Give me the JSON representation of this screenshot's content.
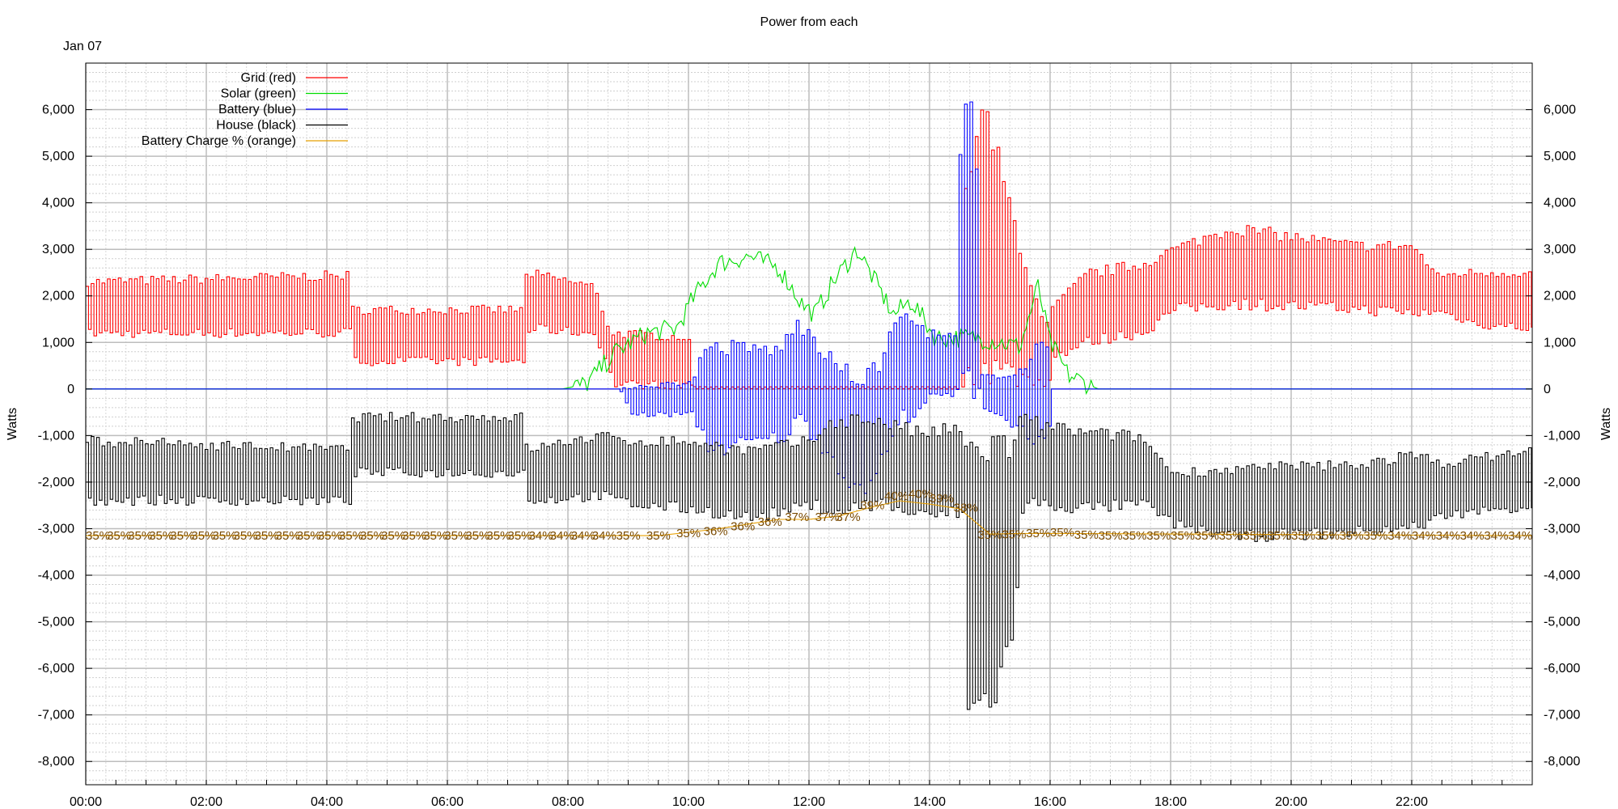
{
  "chart_data": {
    "type": "line",
    "title": "Power from each",
    "date_label": "Jan 07",
    "ylabel_left": "Watts",
    "ylabel_right": "Watts",
    "xlim": [
      0,
      24
    ],
    "ylim": [
      -8500,
      7000
    ],
    "grid": true,
    "legend_position": "top-left",
    "x_ticks": [
      {
        "v": 0,
        "label": "00:00"
      },
      {
        "v": 2,
        "label": "02:00"
      },
      {
        "v": 4,
        "label": "04:00"
      },
      {
        "v": 6,
        "label": "06:00"
      },
      {
        "v": 8,
        "label": "08:00"
      },
      {
        "v": 10,
        "label": "10:00"
      },
      {
        "v": 12,
        "label": "12:00"
      },
      {
        "v": 14,
        "label": "14:00"
      },
      {
        "v": 16,
        "label": "16:00"
      },
      {
        "v": 18,
        "label": "18:00"
      },
      {
        "v": 20,
        "label": "20:00"
      },
      {
        "v": 22,
        "label": "22:00"
      }
    ],
    "y_ticks": [
      {
        "v": 6000,
        "label": "6,000"
      },
      {
        "v": 5000,
        "label": "5,000"
      },
      {
        "v": 4000,
        "label": "4,000"
      },
      {
        "v": 3000,
        "label": "3,000"
      },
      {
        "v": 2000,
        "label": "2,000"
      },
      {
        "v": 1000,
        "label": "1,000"
      },
      {
        "v": 0,
        "label": "0"
      },
      {
        "v": -1000,
        "label": "-1,000"
      },
      {
        "v": -2000,
        "label": "-2,000"
      },
      {
        "v": -3000,
        "label": "-3,000"
      },
      {
        "v": -4000,
        "label": "-4,000"
      },
      {
        "v": -5000,
        "label": "-5,000"
      },
      {
        "v": -6000,
        "label": "-6,000"
      },
      {
        "v": -7000,
        "label": "-7,000"
      },
      {
        "v": -8000,
        "label": "-8,000"
      }
    ],
    "series": [
      {
        "name": "Grid (red)",
        "color": "#ff0000",
        "envelope": [
          [
            0,
            1100,
            2400
          ],
          [
            4.35,
            1100,
            2550
          ],
          [
            4.4,
            500,
            1800
          ],
          [
            7.2,
            500,
            1800
          ],
          [
            7.3,
            1200,
            2600
          ],
          [
            8.4,
            1100,
            2300
          ],
          [
            8.7,
            0,
            1300
          ],
          [
            10.0,
            0,
            1200
          ],
          [
            10.05,
            0,
            50
          ],
          [
            14.45,
            0,
            50
          ],
          [
            14.6,
            0,
            5000
          ],
          [
            14.9,
            0,
            6400
          ],
          [
            15.2,
            0,
            4800
          ],
          [
            15.9,
            0,
            1300
          ],
          [
            16.0,
            600,
            1800
          ],
          [
            16.6,
            900,
            2600
          ],
          [
            17.5,
            1100,
            2800
          ],
          [
            18.0,
            1600,
            3100
          ],
          [
            19.0,
            1700,
            3600
          ],
          [
            21.0,
            1600,
            3200
          ],
          [
            22.0,
            1500,
            3200
          ],
          [
            22.4,
            1600,
            2500
          ],
          [
            23.0,
            1300,
            2600
          ],
          [
            24,
            1200,
            2600
          ]
        ]
      },
      {
        "name": "Solar (green)",
        "color": "#00dd00",
        "points": [
          [
            0,
            0
          ],
          [
            7.9,
            0
          ],
          [
            8.3,
            100
          ],
          [
            8.8,
            800
          ],
          [
            9.3,
            1200
          ],
          [
            9.8,
            1300
          ],
          [
            10.1,
            2000
          ],
          [
            10.5,
            2700
          ],
          [
            11.0,
            2850
          ],
          [
            11.5,
            2600
          ],
          [
            11.9,
            1800
          ],
          [
            12.1,
            1600
          ],
          [
            12.4,
            2300
          ],
          [
            12.8,
            3000
          ],
          [
            13.1,
            2300
          ],
          [
            13.4,
            1600
          ],
          [
            13.7,
            1900
          ],
          [
            14.1,
            1100
          ],
          [
            14.8,
            1100
          ],
          [
            15.2,
            1000
          ],
          [
            15.5,
            900
          ],
          [
            15.8,
            2200
          ],
          [
            16.0,
            1000
          ],
          [
            16.3,
            300
          ],
          [
            16.8,
            0
          ],
          [
            24,
            0
          ]
        ],
        "jitter": 220
      },
      {
        "name": "Battery (blue)",
        "color": "#0000ff",
        "envelope": [
          [
            0,
            0,
            0
          ],
          [
            8.8,
            0,
            0
          ],
          [
            9.0,
            -600,
            100
          ],
          [
            10.0,
            -600,
            200
          ],
          [
            10.3,
            -1500,
            1100
          ],
          [
            11.5,
            -1200,
            1000
          ],
          [
            11.8,
            -800,
            1600
          ],
          [
            12.4,
            -1800,
            700
          ],
          [
            12.8,
            -2500,
            400
          ],
          [
            13.1,
            -1800,
            600
          ],
          [
            13.5,
            -800,
            1800
          ],
          [
            14.0,
            -300,
            1300
          ],
          [
            14.45,
            -200,
            1200
          ],
          [
            14.5,
            -300,
            6300
          ],
          [
            14.75,
            -300,
            6300
          ],
          [
            14.8,
            -400,
            300
          ],
          [
            15.5,
            -1000,
            500
          ],
          [
            15.9,
            -1500,
            1300
          ],
          [
            16.0,
            0,
            0
          ],
          [
            24,
            0,
            0
          ]
        ]
      },
      {
        "name": "House (black)",
        "color": "#000000",
        "envelope": [
          [
            0,
            -2500,
            -1000
          ],
          [
            4.35,
            -2500,
            -1200
          ],
          [
            4.4,
            -1900,
            -500
          ],
          [
            7.2,
            -1900,
            -500
          ],
          [
            7.3,
            -2500,
            -1200
          ],
          [
            8.5,
            -2400,
            -900
          ],
          [
            9.0,
            -2600,
            -1000
          ],
          [
            10.0,
            -2700,
            -1000
          ],
          [
            11.0,
            -2900,
            -1200
          ],
          [
            12.0,
            -2600,
            -1000
          ],
          [
            12.4,
            -2800,
            -500
          ],
          [
            13.1,
            -2600,
            -500
          ],
          [
            13.8,
            -2900,
            -800
          ],
          [
            14.5,
            -2800,
            -700
          ],
          [
            14.55,
            -7500,
            -1100
          ],
          [
            15.0,
            -7000,
            -700
          ],
          [
            15.3,
            -5800,
            -900
          ],
          [
            15.5,
            -2600,
            -500
          ],
          [
            16.5,
            -2700,
            -800
          ],
          [
            17.5,
            -2600,
            -900
          ],
          [
            18.0,
            -3000,
            -1700
          ],
          [
            19.0,
            -3300,
            -1600
          ],
          [
            21.0,
            -3200,
            -1500
          ],
          [
            22.0,
            -3100,
            -1300
          ],
          [
            22.5,
            -2800,
            -1500
          ],
          [
            24,
            -2600,
            -1200
          ]
        ]
      },
      {
        "name": "Battery Charge % (orange)",
        "color": "#e8a000",
        "points": [
          [
            0,
            -3150
          ],
          [
            7.5,
            -3150
          ],
          [
            8.0,
            -3150
          ],
          [
            9.5,
            -3150
          ],
          [
            10.2,
            -3050
          ],
          [
            10.8,
            -2950
          ],
          [
            11.4,
            -2800
          ],
          [
            12.2,
            -2800
          ],
          [
            12.6,
            -2700
          ],
          [
            13.0,
            -2550
          ],
          [
            13.5,
            -2400
          ],
          [
            14.2,
            -2500
          ],
          [
            14.6,
            -2600
          ],
          [
            14.9,
            -3120
          ],
          [
            15.6,
            -3100
          ],
          [
            24,
            -3150
          ]
        ],
        "labels": [
          {
            "x": 0.0,
            "y": -3150,
            "text": "35%"
          },
          {
            "x": 0.35,
            "y": -3150,
            "text": "35%"
          },
          {
            "x": 0.7,
            "y": -3150,
            "text": "35%"
          },
          {
            "x": 1.05,
            "y": -3150,
            "text": "35%"
          },
          {
            "x": 1.4,
            "y": -3150,
            "text": "35%"
          },
          {
            "x": 1.75,
            "y": -3150,
            "text": "35%"
          },
          {
            "x": 2.1,
            "y": -3150,
            "text": "35%"
          },
          {
            "x": 2.45,
            "y": -3150,
            "text": "35%"
          },
          {
            "x": 2.8,
            "y": -3150,
            "text": "35%"
          },
          {
            "x": 3.15,
            "y": -3150,
            "text": "35%"
          },
          {
            "x": 3.5,
            "y": -3150,
            "text": "35%"
          },
          {
            "x": 3.85,
            "y": -3150,
            "text": "35%"
          },
          {
            "x": 4.2,
            "y": -3150,
            "text": "35%"
          },
          {
            "x": 4.55,
            "y": -3150,
            "text": "35%"
          },
          {
            "x": 4.9,
            "y": -3150,
            "text": "35%"
          },
          {
            "x": 5.25,
            "y": -3150,
            "text": "35%"
          },
          {
            "x": 5.6,
            "y": -3150,
            "text": "35%"
          },
          {
            "x": 5.95,
            "y": -3150,
            "text": "35%"
          },
          {
            "x": 6.3,
            "y": -3150,
            "text": "35%"
          },
          {
            "x": 6.65,
            "y": -3150,
            "text": "35%"
          },
          {
            "x": 7.0,
            "y": -3150,
            "text": "35%"
          },
          {
            "x": 7.35,
            "y": -3150,
            "text": "34%"
          },
          {
            "x": 7.7,
            "y": -3150,
            "text": "34%"
          },
          {
            "x": 8.05,
            "y": -3150,
            "text": "34%"
          },
          {
            "x": 8.4,
            "y": -3150,
            "text": "34%"
          },
          {
            "x": 8.8,
            "y": -3150,
            "text": "35%"
          },
          {
            "x": 9.3,
            "y": -3150,
            "text": "35%"
          },
          {
            "x": 9.8,
            "y": -3100,
            "text": "35%"
          },
          {
            "x": 10.25,
            "y": -3050,
            "text": "36%"
          },
          {
            "x": 10.7,
            "y": -2950,
            "text": "36%"
          },
          {
            "x": 11.15,
            "y": -2850,
            "text": "36%"
          },
          {
            "x": 11.6,
            "y": -2750,
            "text": "37%"
          },
          {
            "x": 12.1,
            "y": -2750,
            "text": "37%"
          },
          {
            "x": 12.45,
            "y": -2750,
            "text": "37%"
          },
          {
            "x": 12.85,
            "y": -2500,
            "text": "39%"
          },
          {
            "x": 13.25,
            "y": -2300,
            "text": "40%"
          },
          {
            "x": 13.65,
            "y": -2250,
            "text": "40%"
          },
          {
            "x": 14.0,
            "y": -2350,
            "text": "39%"
          },
          {
            "x": 14.4,
            "y": -2550,
            "text": "38%"
          },
          {
            "x": 14.8,
            "y": -3130,
            "text": "35%"
          },
          {
            "x": 15.2,
            "y": -3120,
            "text": "35%"
          },
          {
            "x": 15.6,
            "y": -3100,
            "text": "35%"
          },
          {
            "x": 16.0,
            "y": -3080,
            "text": "35%"
          },
          {
            "x": 16.4,
            "y": -3130,
            "text": "35%"
          },
          {
            "x": 16.8,
            "y": -3150,
            "text": "35%"
          },
          {
            "x": 17.2,
            "y": -3150,
            "text": "35%"
          },
          {
            "x": 17.6,
            "y": -3150,
            "text": "35%"
          },
          {
            "x": 18.0,
            "y": -3150,
            "text": "35%"
          },
          {
            "x": 18.4,
            "y": -3150,
            "text": "35%"
          },
          {
            "x": 18.8,
            "y": -3150,
            "text": "35%"
          },
          {
            "x": 19.2,
            "y": -3150,
            "text": "35%"
          },
          {
            "x": 19.6,
            "y": -3150,
            "text": "35%"
          },
          {
            "x": 20.0,
            "y": -3150,
            "text": "35%"
          },
          {
            "x": 20.4,
            "y": -3150,
            "text": "35%"
          },
          {
            "x": 20.8,
            "y": -3150,
            "text": "35%"
          },
          {
            "x": 21.2,
            "y": -3150,
            "text": "35%"
          },
          {
            "x": 21.6,
            "y": -3150,
            "text": "34%"
          },
          {
            "x": 22.0,
            "y": -3150,
            "text": "34%"
          },
          {
            "x": 22.4,
            "y": -3150,
            "text": "34%"
          },
          {
            "x": 22.8,
            "y": -3150,
            "text": "34%"
          },
          {
            "x": 23.2,
            "y": -3150,
            "text": "34%"
          },
          {
            "x": 23.6,
            "y": -3150,
            "text": "34%"
          }
        ]
      }
    ]
  }
}
